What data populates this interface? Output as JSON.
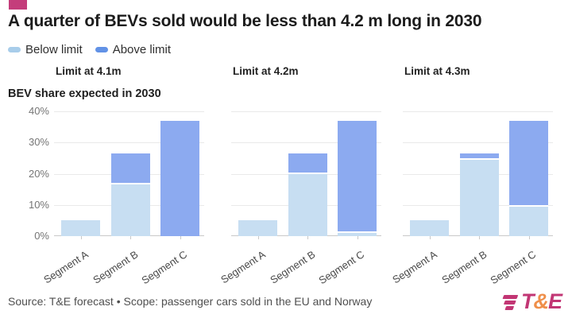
{
  "header": {
    "title": "A quarter of BEVs sold would be less than 4.2 m long in 2030"
  },
  "legend": {
    "items": [
      {
        "label": "Below limit",
        "color": "#a8cdea"
      },
      {
        "label": "Above limit",
        "color": "#6292e6"
      }
    ]
  },
  "footer": {
    "source": "Source: T&E forecast • Scope: passenger cars sold in the EU and Norway"
  },
  "logo": {
    "letters": [
      {
        "text": "T",
        "color": "#c23674"
      },
      {
        "text": "&",
        "color": "#ef8f4a"
      },
      {
        "text": "E",
        "color": "#c23674"
      }
    ],
    "bars_color": "#c23674"
  },
  "colors": {
    "brand_pink": "#c43d7b",
    "below_bar": "#c7def2",
    "above_bar": "#8caaf0"
  },
  "chart_data": {
    "type": "bar",
    "stacked": true,
    "grid": true,
    "legend_position": "top-left",
    "y_axis_title": "BEV share expected in 2030",
    "unit": "percent BEV share",
    "ylim": [
      0,
      40
    ],
    "y_ticks": [
      "40%",
      "30%",
      "20%",
      "10%",
      "0%"
    ],
    "categories": [
      "Segment A",
      "Segment B",
      "Segment C"
    ],
    "series_names": [
      "Below limit",
      "Above limit"
    ],
    "panels": [
      {
        "title": "Limit at 4.1m",
        "series": [
          {
            "name": "Below limit",
            "values": [
              5,
              16.5,
              0
            ]
          },
          {
            "name": "Above limit",
            "values": [
              0,
              10,
              37
            ]
          }
        ]
      },
      {
        "title": "Limit at 4.2m",
        "series": [
          {
            "name": "Below limit",
            "values": [
              5,
              20,
              1
            ]
          },
          {
            "name": "Above limit",
            "values": [
              0,
              6.5,
              36
            ]
          }
        ]
      },
      {
        "title": "Limit at 4.3m",
        "series": [
          {
            "name": "Below limit",
            "values": [
              5,
              24.5,
              9.5
            ]
          },
          {
            "name": "Above limit",
            "values": [
              0,
              2,
              27.5
            ]
          }
        ]
      }
    ]
  }
}
